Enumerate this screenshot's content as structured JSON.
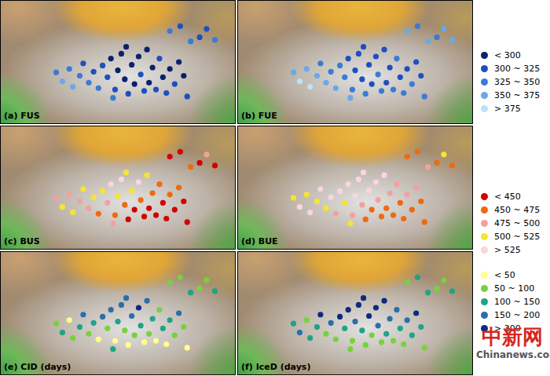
{
  "chart_data": [
    {
      "type": "scatter",
      "title": "(a) FUS",
      "xlim": [
        72,
        106
      ],
      "ylim": [
        25,
        43
      ],
      "tick_labels": false,
      "x": [
        80.1,
        81.0,
        82.0,
        82.5,
        83.5,
        84.0,
        84.8,
        85.5,
        86.2,
        86.8,
        87.5,
        88.0,
        88.6,
        89.0,
        89.5,
        90.0,
        90.5,
        91.0,
        91.4,
        92.0,
        92.3,
        92.8,
        93.2,
        93.5,
        94.0,
        94.5,
        90.2,
        88.3,
        95.0,
        95.5,
        96.0,
        96.5,
        97.2,
        97.8,
        98.5,
        99.0,
        96.5,
        98.0,
        99.5,
        100.8,
        101.8,
        103.0
      ],
      "values": [
        32.5,
        31.2,
        33.0,
        30.4,
        32.0,
        33.8,
        31.0,
        32.6,
        30.2,
        33.5,
        31.8,
        34.5,
        30.0,
        32.8,
        35.2,
        31.5,
        29.4,
        33.6,
        30.8,
        34.8,
        32.2,
        29.8,
        35.8,
        31.0,
        33.2,
        30.0,
        36.2,
        28.8,
        34.5,
        31.8,
        29.5,
        33.0,
        30.8,
        34.0,
        32.0,
        29.0,
        38.5,
        39.2,
        37.0,
        37.6,
        38.8,
        37.2
      ],
      "class": [
        2,
        3,
        2,
        3,
        2,
        1,
        2,
        1,
        2,
        1,
        1,
        0,
        1,
        0,
        0,
        0,
        1,
        0,
        0,
        0,
        1,
        1,
        0,
        0,
        0,
        1,
        0,
        2,
        1,
        0,
        1,
        0,
        1,
        0,
        0,
        1,
        2,
        1,
        2,
        1,
        1,
        2
      ],
      "series": [
        {
          "name": "< 300",
          "color": "#08226b"
        },
        {
          "name": "300 ~ 325",
          "color": "#1f4fbf"
        },
        {
          "name": "325 ~ 350",
          "color": "#3a7bd5"
        },
        {
          "name": "350 ~ 375",
          "color": "#6aa8e8"
        },
        {
          "name": "> 375",
          "color": "#b9e3f7"
        }
      ]
    },
    {
      "type": "scatter",
      "title": "(b) FUE",
      "xlim": [
        72,
        106
      ],
      "ylim": [
        25,
        43
      ],
      "tick_labels": false,
      "x": [
        80.1,
        81.0,
        82.0,
        82.5,
        83.5,
        84.0,
        84.8,
        85.5,
        86.2,
        86.8,
        87.5,
        88.0,
        88.6,
        89.0,
        89.5,
        90.0,
        90.5,
        91.0,
        91.4,
        92.0,
        92.3,
        92.8,
        93.2,
        93.5,
        94.0,
        94.5,
        90.2,
        88.3,
        95.0,
        95.5,
        96.0,
        96.5,
        97.2,
        97.8,
        98.5,
        99.0,
        96.5,
        98.0,
        99.5,
        100.8,
        101.8,
        103.0
      ],
      "values": [
        32.5,
        31.2,
        33.0,
        30.4,
        32.0,
        33.8,
        31.0,
        32.6,
        30.2,
        33.5,
        31.8,
        34.5,
        30.0,
        32.8,
        35.2,
        31.5,
        29.4,
        33.6,
        30.8,
        34.8,
        32.2,
        29.8,
        35.8,
        31.0,
        33.2,
        30.0,
        36.2,
        28.8,
        34.5,
        31.8,
        29.5,
        33.0,
        30.8,
        34.0,
        32.0,
        29.0,
        38.5,
        39.2,
        37.0,
        37.6,
        38.8,
        37.2
      ],
      "class": [
        3,
        4,
        3,
        4,
        3,
        2,
        3,
        2,
        3,
        2,
        2,
        1,
        2,
        1,
        1,
        1,
        2,
        1,
        1,
        1,
        2,
        2,
        1,
        1,
        1,
        2,
        1,
        3,
        2,
        1,
        2,
        1,
        2,
        1,
        1,
        2,
        3,
        2,
        3,
        2,
        3,
        3
      ],
      "series": [
        {
          "name": "< 300",
          "color": "#08226b"
        },
        {
          "name": "300 ~ 325",
          "color": "#1f4fbf"
        },
        {
          "name": "325 ~ 350",
          "color": "#3a7bd5"
        },
        {
          "name": "350 ~ 375",
          "color": "#6aa8e8"
        },
        {
          "name": "> 375",
          "color": "#b9e3f7"
        }
      ]
    },
    {
      "type": "scatter",
      "title": "(c) BUS",
      "xlim": [
        72,
        106
      ],
      "ylim": [
        25,
        43
      ],
      "tick_labels": false,
      "x": [
        80.1,
        81.0,
        82.0,
        82.5,
        83.5,
        84.0,
        84.8,
        85.5,
        86.2,
        86.8,
        87.5,
        88.0,
        88.6,
        89.0,
        89.5,
        90.0,
        90.5,
        91.0,
        91.4,
        92.0,
        92.3,
        92.8,
        93.2,
        93.5,
        94.0,
        94.5,
        90.2,
        88.3,
        95.0,
        95.5,
        96.0,
        96.5,
        97.2,
        97.8,
        98.5,
        99.0,
        96.5,
        98.0,
        99.5,
        100.8,
        101.8,
        103.0
      ],
      "values": [
        32.5,
        31.2,
        33.0,
        30.4,
        32.0,
        33.8,
        31.0,
        32.6,
        30.2,
        33.5,
        31.8,
        34.5,
        30.0,
        32.8,
        35.2,
        31.5,
        29.4,
        33.6,
        30.8,
        34.8,
        32.2,
        29.8,
        35.8,
        31.0,
        33.2,
        30.0,
        36.2,
        28.8,
        34.5,
        31.8,
        29.5,
        33.0,
        30.8,
        34.0,
        32.0,
        29.0,
        38.5,
        39.2,
        37.0,
        37.6,
        38.8,
        37.2
      ],
      "class": [
        2,
        3,
        2,
        3,
        2,
        3,
        2,
        3,
        1,
        3,
        2,
        4,
        1,
        3,
        4,
        1,
        0,
        3,
        0,
        4,
        1,
        0,
        3,
        0,
        1,
        0,
        3,
        2,
        1,
        0,
        0,
        1,
        0,
        1,
        0,
        0,
        0,
        0,
        1,
        0,
        2,
        0
      ],
      "series": [
        {
          "name": "< 450",
          "color": "#d40000"
        },
        {
          "name": "450 ~ 475",
          "color": "#ee6a10"
        },
        {
          "name": "475 ~ 500",
          "color": "#f4a0a0"
        },
        {
          "name": "500 ~ 525",
          "color": "#f5e532"
        },
        {
          "name": "> 525",
          "color": "#fad4de"
        }
      ]
    },
    {
      "type": "scatter",
      "title": "(d) BUE",
      "xlim": [
        72,
        106
      ],
      "ylim": [
        25,
        43
      ],
      "tick_labels": false,
      "x": [
        80.1,
        81.0,
        82.0,
        82.5,
        83.5,
        84.0,
        84.8,
        85.5,
        86.2,
        86.8,
        87.5,
        88.0,
        88.6,
        89.0,
        89.5,
        90.0,
        90.5,
        91.0,
        91.4,
        92.0,
        92.3,
        92.8,
        93.2,
        93.5,
        94.0,
        94.5,
        90.2,
        88.3,
        95.0,
        95.5,
        96.0,
        96.5,
        97.2,
        97.8,
        98.5,
        99.0,
        96.5,
        98.0,
        99.5,
        100.8,
        101.8,
        103.0
      ],
      "values": [
        32.5,
        31.2,
        33.0,
        30.4,
        32.0,
        33.8,
        31.0,
        32.6,
        30.2,
        33.5,
        31.8,
        34.5,
        30.0,
        32.8,
        35.2,
        31.5,
        29.4,
        33.6,
        30.8,
        34.8,
        32.2,
        29.8,
        35.8,
        31.0,
        33.2,
        30.0,
        36.2,
        28.8,
        34.5,
        31.8,
        29.5,
        33.0,
        30.8,
        34.0,
        32.0,
        29.0,
        38.5,
        39.2,
        37.0,
        37.6,
        38.8,
        37.2
      ],
      "class": [
        3,
        4,
        3,
        4,
        3,
        4,
        3,
        4,
        2,
        4,
        3,
        4,
        2,
        4,
        4,
        2,
        1,
        4,
        1,
        4,
        2,
        1,
        4,
        1,
        2,
        1,
        4,
        3,
        2,
        1,
        1,
        2,
        1,
        2,
        1,
        1,
        1,
        1,
        2,
        1,
        3,
        1
      ],
      "series": [
        {
          "name": "< 450",
          "color": "#d40000"
        },
        {
          "name": "450 ~ 475",
          "color": "#ee6a10"
        },
        {
          "name": "475 ~ 500",
          "color": "#f4a0a0"
        },
        {
          "name": "500 ~ 525",
          "color": "#f5e532"
        },
        {
          "name": "> 525",
          "color": "#fad4de"
        }
      ]
    },
    {
      "type": "scatter",
      "title": "(e) CID (days)",
      "xlim": [
        72,
        106
      ],
      "ylim": [
        25,
        43
      ],
      "tick_labels": false,
      "x": [
        80.1,
        81.0,
        82.0,
        82.5,
        83.5,
        84.0,
        84.8,
        85.5,
        86.2,
        86.8,
        87.5,
        88.0,
        88.6,
        89.0,
        89.5,
        90.0,
        90.5,
        91.0,
        91.4,
        92.0,
        92.3,
        92.8,
        93.2,
        93.5,
        94.0,
        94.5,
        90.2,
        88.3,
        95.0,
        95.5,
        96.0,
        96.5,
        97.2,
        97.8,
        98.5,
        99.0,
        96.5,
        98.0,
        99.5,
        100.8,
        101.8,
        103.0
      ],
      "values": [
        32.5,
        31.2,
        33.0,
        30.4,
        32.0,
        33.8,
        31.0,
        32.6,
        30.2,
        33.5,
        31.8,
        34.5,
        30.0,
        32.8,
        35.2,
        31.5,
        29.4,
        33.6,
        30.8,
        34.8,
        32.2,
        29.8,
        35.8,
        31.0,
        33.2,
        30.0,
        36.2,
        28.8,
        34.5,
        31.8,
        29.5,
        33.0,
        30.8,
        34.0,
        32.0,
        29.0,
        38.5,
        39.2,
        37.0,
        37.6,
        38.8,
        37.2
      ],
      "class": [
        1,
        2,
        0,
        1,
        2,
        3,
        1,
        2,
        0,
        3,
        1,
        3,
        0,
        2,
        3,
        1,
        0,
        3,
        1,
        4,
        2,
        0,
        3,
        1,
        2,
        0,
        3,
        2,
        1,
        2,
        0,
        2,
        1,
        3,
        1,
        0,
        1,
        1,
        2,
        1,
        1,
        2
      ],
      "series": [
        {
          "name": "< 50",
          "color": "#ffff8c"
        },
        {
          "name": "50 ~ 100",
          "color": "#78d23c"
        },
        {
          "name": "100 ~ 150",
          "color": "#20a386"
        },
        {
          "name": "150 ~ 200",
          "color": "#2a6fa8"
        },
        {
          "name": "> 200",
          "color": "#0d2a80"
        }
      ]
    },
    {
      "type": "scatter",
      "title": "(f) IceD (days)",
      "xlim": [
        72,
        106
      ],
      "ylim": [
        25,
        43
      ],
      "tick_labels": false,
      "x": [
        80.1,
        81.0,
        82.0,
        82.5,
        83.5,
        84.0,
        84.8,
        85.5,
        86.2,
        86.8,
        87.5,
        88.0,
        88.6,
        89.0,
        89.5,
        90.0,
        90.5,
        91.0,
        91.4,
        92.0,
        92.3,
        92.8,
        93.2,
        93.5,
        94.0,
        94.5,
        90.2,
        88.3,
        95.0,
        95.5,
        96.0,
        96.5,
        97.2,
        97.8,
        98.5,
        99.0,
        96.5,
        98.0,
        99.5,
        100.8,
        101.8,
        103.0
      ],
      "values": [
        32.5,
        31.2,
        33.0,
        30.4,
        32.0,
        33.8,
        31.0,
        32.6,
        30.2,
        33.5,
        31.8,
        34.5,
        30.0,
        32.8,
        35.2,
        31.5,
        29.4,
        33.6,
        30.8,
        34.8,
        32.2,
        29.8,
        35.8,
        31.0,
        33.2,
        30.0,
        36.2,
        28.8,
        34.5,
        31.8,
        29.5,
        33.0,
        30.8,
        34.0,
        32.0,
        29.0,
        38.5,
        39.2,
        37.0,
        37.6,
        38.8,
        37.2
      ],
      "class": [
        2,
        3,
        1,
        2,
        2,
        4,
        1,
        3,
        1,
        4,
        2,
        4,
        1,
        3,
        4,
        2,
        1,
        4,
        1,
        4,
        3,
        1,
        4,
        2,
        3,
        1,
        4,
        1,
        3,
        2,
        1,
        3,
        2,
        4,
        2,
        1,
        1,
        2,
        2,
        1,
        1,
        2
      ],
      "series": [
        {
          "name": "< 50",
          "color": "#ffff8c"
        },
        {
          "name": "50 ~ 100",
          "color": "#78d23c"
        },
        {
          "name": "100 ~ 150",
          "color": "#20a386"
        },
        {
          "name": "150 ~ 200",
          "color": "#2a6fa8"
        },
        {
          "name": "> 200",
          "color": "#0d2a80"
        }
      ]
    }
  ],
  "watermark": {
    "text": "中新网",
    "subtext": "Chinanews.com"
  }
}
